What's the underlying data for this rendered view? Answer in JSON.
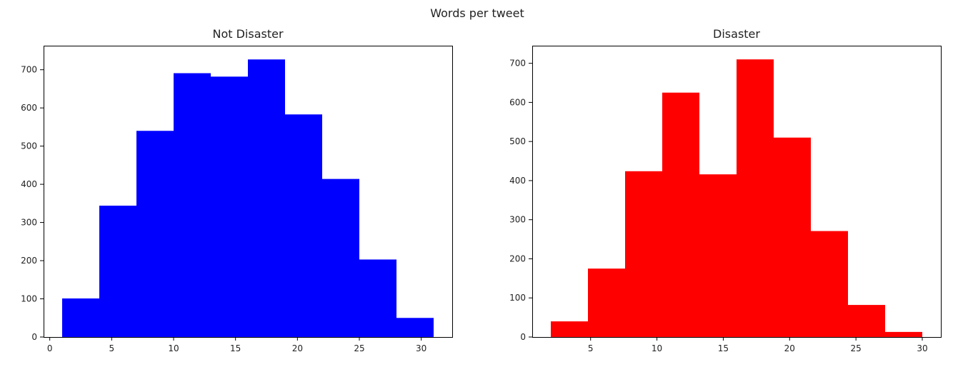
{
  "figure": {
    "title": "Words per tweet"
  },
  "chart_data": [
    {
      "type": "bar",
      "title": "Not Disaster",
      "xlabel": "",
      "ylabel": "",
      "color": "#0000ff",
      "bin_edges": [
        1,
        4,
        7,
        10,
        13,
        16,
        19,
        22,
        25,
        28,
        31
      ],
      "values": [
        101,
        344,
        540,
        691,
        682,
        727,
        583,
        414,
        203,
        50
      ],
      "xlim": [
        -0.5,
        32.5
      ],
      "ylim": [
        0,
        763
      ],
      "xticks": [
        0,
        5,
        10,
        15,
        20,
        25,
        30
      ],
      "yticks": [
        0,
        100,
        200,
        300,
        400,
        500,
        600,
        700
      ],
      "grid": false
    },
    {
      "type": "bar",
      "title": "Disaster",
      "xlabel": "",
      "ylabel": "",
      "color": "#ff0000",
      "bin_edges": [
        2,
        4.8,
        7.6,
        10.4,
        13.2,
        16,
        18.8,
        21.6,
        24.4,
        27.2,
        30
      ],
      "values": [
        40,
        175,
        424,
        625,
        416,
        710,
        510,
        271,
        82,
        13
      ],
      "xlim": [
        0.6,
        31.4
      ],
      "ylim": [
        0,
        745
      ],
      "xticks": [
        5,
        10,
        15,
        20,
        25,
        30
      ],
      "yticks": [
        0,
        100,
        200,
        300,
        400,
        500,
        600,
        700
      ],
      "grid": false
    }
  ]
}
